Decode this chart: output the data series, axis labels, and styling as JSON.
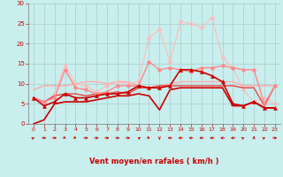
{
  "x": [
    0,
    1,
    2,
    3,
    4,
    5,
    6,
    7,
    8,
    9,
    10,
    11,
    12,
    13,
    14,
    15,
    16,
    17,
    18,
    19,
    20,
    21,
    22,
    23
  ],
  "series": [
    {
      "y": [
        0.0,
        1.0,
        5.0,
        5.5,
        5.5,
        5.5,
        6.0,
        6.5,
        7.0,
        7.0,
        7.5,
        7.0,
        3.5,
        8.5,
        9.0,
        9.0,
        9.0,
        9.0,
        9.0,
        4.5,
        4.5,
        5.5,
        4.0,
        4.0
      ],
      "color": "#cc0000",
      "marker": null,
      "lw": 1.2,
      "ms": 0,
      "zorder": 3
    },
    {
      "y": [
        6.5,
        4.5,
        5.5,
        7.5,
        6.5,
        6.5,
        7.0,
        7.5,
        7.5,
        8.0,
        9.5,
        9.0,
        9.0,
        9.5,
        13.5,
        13.5,
        13.0,
        12.0,
        10.5,
        5.0,
        4.5,
        5.5,
        4.0,
        4.0
      ],
      "color": "#cc0000",
      "marker": "^",
      "lw": 1.2,
      "ms": 3,
      "zorder": 4
    },
    {
      "y": [
        6.5,
        5.5,
        7.0,
        7.5,
        7.5,
        7.0,
        7.5,
        7.5,
        8.0,
        7.5,
        9.0,
        9.0,
        9.5,
        9.5,
        9.5,
        9.5,
        9.5,
        9.5,
        9.5,
        9.5,
        9.0,
        9.0,
        4.5,
        9.5
      ],
      "color": "#ee4444",
      "marker": null,
      "lw": 1.0,
      "ms": 0,
      "zorder": 3
    },
    {
      "y": [
        6.5,
        5.5,
        6.5,
        13.5,
        9.0,
        8.5,
        7.5,
        8.0,
        9.5,
        9.5,
        9.5,
        15.5,
        13.5,
        14.0,
        13.5,
        13.0,
        14.0,
        14.0,
        14.5,
        14.0,
        13.5,
        13.5,
        5.0,
        9.5
      ],
      "color": "#ff8888",
      "marker": "D",
      "lw": 1.0,
      "ms": 2.5,
      "zorder": 3
    },
    {
      "y": [
        8.5,
        9.5,
        9.5,
        9.5,
        10.0,
        10.5,
        10.5,
        10.0,
        10.5,
        10.5,
        9.5,
        9.0,
        9.5,
        10.0,
        10.5,
        10.5,
        10.5,
        10.5,
        10.5,
        10.5,
        9.5,
        9.5,
        9.5,
        9.5
      ],
      "color": "#ffaaaa",
      "marker": null,
      "lw": 1.0,
      "ms": 0,
      "zorder": 2
    },
    {
      "y": [
        6.5,
        5.0,
        7.5,
        14.5,
        10.0,
        9.5,
        8.0,
        9.5,
        10.5,
        10.0,
        10.5,
        21.5,
        23.5,
        15.5,
        25.5,
        25.0,
        24.0,
        26.5,
        16.5,
        14.0,
        8.5,
        5.5,
        6.5,
        5.0
      ],
      "color": "#ffbbbb",
      "marker": "D",
      "lw": 0.8,
      "ms": 2.5,
      "zorder": 2
    }
  ],
  "wind_angles": [
    45,
    90,
    90,
    135,
    135,
    90,
    90,
    90,
    90,
    90,
    315,
    135,
    180,
    270,
    270,
    270,
    270,
    270,
    270,
    270,
    45,
    0,
    45,
    90
  ],
  "xlabel": "Vent moyen/en rafales ( km/h )",
  "xlim_min": -0.5,
  "xlim_max": 23.5,
  "ylim_min": 0,
  "ylim_max": 30,
  "yticks": [
    0,
    5,
    10,
    15,
    20,
    25,
    30
  ],
  "xticks": [
    0,
    1,
    2,
    3,
    4,
    5,
    6,
    7,
    8,
    9,
    10,
    11,
    12,
    13,
    14,
    15,
    16,
    17,
    18,
    19,
    20,
    21,
    22,
    23
  ],
  "bg_color": "#c8eeed",
  "grid_color": "#aacccc",
  "tick_color": "#cc0000",
  "label_color": "#cc0000",
  "arrow_color": "#cc0000"
}
